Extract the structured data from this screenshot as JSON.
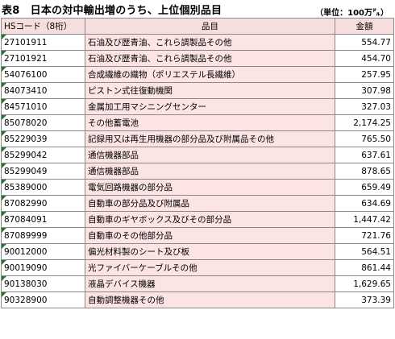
{
  "title": "表8　日本の対中輸出増のうち、上位個別品目",
  "unit": "（単位：100万㌦）",
  "headers": {
    "code": "HSコード（8桁）",
    "name": "品目",
    "value": "金額"
  },
  "rows": [
    {
      "code": "27101911",
      "name": "石油及び歴青油、これら調製品その他",
      "value": "554.77"
    },
    {
      "code": "27101921",
      "name": "石油及び歴青油、これら調製品その他",
      "value": "454.70"
    },
    {
      "code": "54076100",
      "name": "合成繊維の織物（ポリエステル長繊維）",
      "value": "257.95"
    },
    {
      "code": "84073410",
      "name": "ピストン式往復動機関",
      "value": "307.98"
    },
    {
      "code": "84571010",
      "name": "金属加工用マシニングセンター",
      "value": "327.03"
    },
    {
      "code": "85078020",
      "name": "その他蓄電池",
      "value": "2,174.25"
    },
    {
      "code": "85229039",
      "name": "記録用又は再生用機器の部分品及び附属品その他",
      "value": "765.50"
    },
    {
      "code": "85299042",
      "name": "通信機器部品",
      "value": "637.61"
    },
    {
      "code": "85299049",
      "name": "通信機器部品",
      "value": "878.65"
    },
    {
      "code": "85389000",
      "name": "電気回路機器の部分品",
      "value": "659.49"
    },
    {
      "code": "87082990",
      "name": "自動車の部分品及び附属品",
      "value": "634.69"
    },
    {
      "code": "87084091",
      "name": "自動車のギヤボックス及びその部分品",
      "value": "1,447.42"
    },
    {
      "code": "87089999",
      "name": "自動車のその他部分品",
      "value": "721.76"
    },
    {
      "code": "90012000",
      "name": "偏光材料製のシート及び板",
      "value": "564.51"
    },
    {
      "code": "90019090",
      "name": "光ファイバーケーブルその他",
      "value": "861.44"
    },
    {
      "code": "90138030",
      "name": "液晶デバイス機器",
      "value": "1,629.65"
    },
    {
      "code": "90328900",
      "name": "自動調整機器その他",
      "value": "373.39"
    }
  ]
}
